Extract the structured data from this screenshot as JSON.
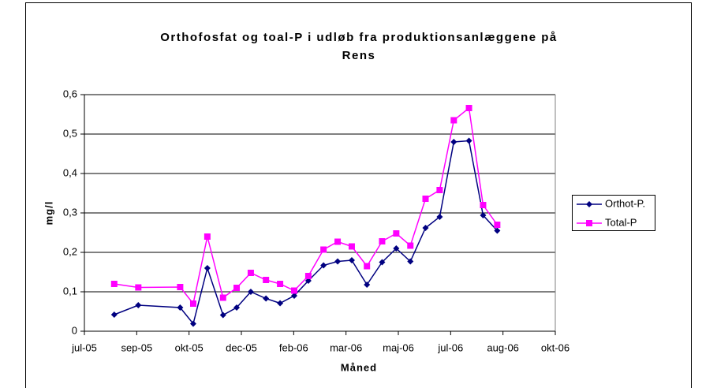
{
  "chart_data": {
    "type": "line",
    "title": [
      "Orthofosfat og toal-P i udløb fra produktionsanlæggene på",
      "Rens"
    ],
    "x_label": "Måned",
    "y_label": "mg/l",
    "x": [
      0.57,
      1.03,
      1.83,
      2.08,
      2.35,
      2.65,
      2.91,
      3.18,
      3.47,
      3.74,
      4.01,
      4.28,
      4.57,
      4.84,
      5.11,
      5.4,
      5.69,
      5.96,
      6.23,
      6.52,
      6.79,
      7.06,
      7.35,
      7.62,
      7.89
    ],
    "series": [
      {
        "name": "Orthot-P.",
        "color": "#000080",
        "marker": "diamond",
        "values": [
          0.042,
          0.066,
          0.06,
          0.019,
          0.16,
          0.041,
          0.06,
          0.1,
          0.083,
          0.071,
          0.09,
          0.128,
          0.167,
          0.177,
          0.18,
          0.118,
          0.175,
          0.21,
          0.177,
          0.262,
          0.29,
          0.48,
          0.483,
          0.294,
          0.255
        ]
      },
      {
        "name": "Total-P",
        "color": "#ff00ff",
        "marker": "square",
        "values": [
          0.12,
          0.111,
          0.112,
          0.07,
          0.24,
          0.085,
          0.11,
          0.148,
          0.13,
          0.12,
          0.103,
          0.14,
          0.207,
          0.227,
          0.215,
          0.165,
          0.228,
          0.248,
          0.217,
          0.336,
          0.358,
          0.535,
          0.566,
          0.32,
          0.27
        ]
      }
    ],
    "xlim": [
      0,
      9
    ],
    "xticks": [
      {
        "value": 0,
        "label": "jul-05"
      },
      {
        "value": 1,
        "label": "sep-05"
      },
      {
        "value": 2,
        "label": "okt-05"
      },
      {
        "value": 3,
        "label": "dec-05"
      },
      {
        "value": 4,
        "label": "feb-06"
      },
      {
        "value": 5,
        "label": "mar-06"
      },
      {
        "value": 6,
        "label": "maj-06"
      },
      {
        "value": 7,
        "label": "jul-06"
      },
      {
        "value": 8,
        "label": "aug-06"
      },
      {
        "value": 9,
        "label": "okt-06"
      }
    ],
    "ylim": [
      0,
      0.6
    ],
    "yticks": [
      0,
      {
        "value": 0.1,
        "label": "0,1"
      },
      {
        "value": 0.2,
        "label": "0,2"
      },
      {
        "value": 0.3,
        "label": "0,3"
      },
      {
        "value": 0.4,
        "label": "0,4"
      },
      {
        "value": 0.5,
        "label": "0,5"
      },
      {
        "value": 0.6,
        "label": "0,6"
      }
    ],
    "grid": true,
    "legend": "right"
  }
}
